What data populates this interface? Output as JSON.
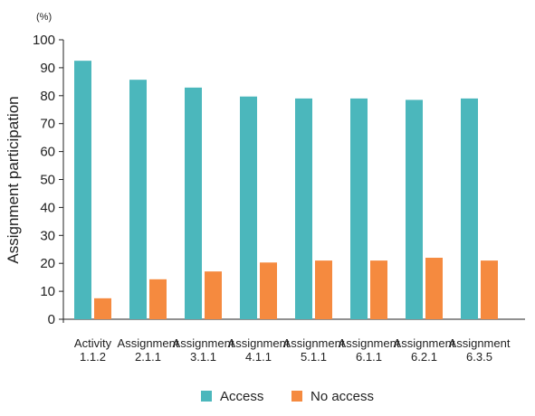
{
  "chart_data": {
    "type": "bar",
    "title": "",
    "xlabel": "",
    "ylabel": "Assignment participation",
    "y_unit": "(%)",
    "ylim": [
      0,
      100
    ],
    "yticks": [
      0,
      10,
      20,
      30,
      40,
      50,
      60,
      70,
      80,
      90,
      100
    ],
    "grid": false,
    "legend_position": "bottom",
    "categories": [
      [
        "Activity",
        "1.1.2"
      ],
      [
        "Assignment",
        "2.1.1"
      ],
      [
        "Assignment",
        "3.1.1"
      ],
      [
        "Assignment",
        "4.1.1"
      ],
      [
        "Assignment",
        "5.1.1"
      ],
      [
        "Assignment",
        "6.1.1"
      ],
      [
        "Assignment",
        "6.2.1"
      ],
      [
        "Assignment",
        "6.3.5"
      ]
    ],
    "series": [
      {
        "name": "Access",
        "color": "#4BB7BC",
        "values": [
          92.5,
          85.7,
          82.9,
          79.7,
          79.0,
          79.0,
          78.5,
          79.0
        ]
      },
      {
        "name": "No access",
        "color": "#F58A3F",
        "values": [
          7.5,
          14.3,
          17.1,
          20.3,
          21.0,
          21.0,
          22.0,
          21.0
        ]
      }
    ]
  }
}
